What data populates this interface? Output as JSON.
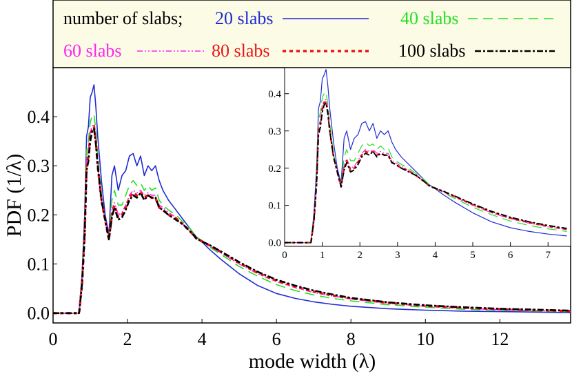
{
  "chart_data": [
    {
      "type": "line",
      "title": "",
      "xlabel": "mode width (λ)",
      "ylabel": "PDF (1/λ)",
      "xlim": [
        0,
        13.9
      ],
      "ylim": [
        -0.02,
        0.5
      ],
      "xticks": [
        0,
        2,
        4,
        6,
        8,
        10,
        12
      ],
      "xtick_labels": [
        "0",
        "2",
        "4",
        "6",
        "8",
        "10",
        "12"
      ],
      "yticks": [
        0.0,
        0.1,
        0.2,
        0.3,
        0.4
      ],
      "ytick_labels": [
        "0.0",
        "0.1",
        "0.2",
        "0.3",
        "0.4"
      ],
      "legend": {
        "title": "number of slabs;",
        "position": "top",
        "entries": [
          "20 slabs",
          "40 slabs",
          "60 slabs",
          "80 slabs",
          "100 slabs"
        ]
      },
      "x": [
        0,
        0.7,
        0.78,
        0.85,
        0.9,
        0.95,
        1.0,
        1.05,
        1.1,
        1.15,
        1.2,
        1.3,
        1.4,
        1.5,
        1.58,
        1.65,
        1.75,
        1.85,
        1.95,
        2.05,
        2.15,
        2.25,
        2.35,
        2.45,
        2.55,
        2.65,
        2.75,
        2.85,
        2.95,
        3.1,
        3.3,
        3.5,
        3.7,
        3.85,
        4.0,
        4.2,
        4.5,
        5.0,
        5.5,
        6.0,
        6.5,
        7.0,
        7.5,
        8.0,
        9.0,
        10.0,
        11.0,
        12.0,
        13.0,
        13.9
      ],
      "series": [
        {
          "name": "20 slabs",
          "color": "#1f2bd1",
          "dash": "solid",
          "values": [
            0,
            0,
            0.08,
            0.2,
            0.36,
            0.38,
            0.44,
            0.45,
            0.465,
            0.42,
            0.36,
            0.27,
            0.2,
            0.16,
            0.28,
            0.3,
            0.25,
            0.28,
            0.29,
            0.32,
            0.325,
            0.3,
            0.32,
            0.28,
            0.3,
            0.29,
            0.3,
            0.27,
            0.25,
            0.23,
            0.21,
            0.19,
            0.17,
            0.155,
            0.145,
            0.13,
            0.11,
            0.08,
            0.056,
            0.04,
            0.03,
            0.023,
            0.018,
            0.014,
            0.009,
            0.006,
            0.004,
            0.003,
            0.002,
            0.001
          ]
        },
        {
          "name": "40 slabs",
          "color": "#22e022",
          "dash": "long-dash",
          "values": [
            0,
            0,
            0.07,
            0.18,
            0.33,
            0.35,
            0.39,
            0.4,
            0.405,
            0.37,
            0.32,
            0.24,
            0.19,
            0.155,
            0.23,
            0.25,
            0.22,
            0.22,
            0.24,
            0.26,
            0.27,
            0.26,
            0.265,
            0.25,
            0.26,
            0.25,
            0.255,
            0.23,
            0.22,
            0.21,
            0.2,
            0.185,
            0.17,
            0.155,
            0.148,
            0.135,
            0.12,
            0.095,
            0.075,
            0.058,
            0.046,
            0.037,
            0.03,
            0.025,
            0.017,
            0.012,
            0.008,
            0.006,
            0.004,
            0.003
          ]
        },
        {
          "name": "60 slabs",
          "color": "#ff22ee",
          "dash": "dash-dot-dot",
          "values": [
            0,
            0,
            0.06,
            0.17,
            0.31,
            0.33,
            0.37,
            0.38,
            0.385,
            0.35,
            0.3,
            0.23,
            0.19,
            0.15,
            0.21,
            0.225,
            0.2,
            0.205,
            0.22,
            0.24,
            0.25,
            0.245,
            0.25,
            0.24,
            0.245,
            0.24,
            0.24,
            0.22,
            0.215,
            0.205,
            0.195,
            0.18,
            0.165,
            0.152,
            0.146,
            0.137,
            0.123,
            0.1,
            0.08,
            0.064,
            0.052,
            0.042,
            0.035,
            0.029,
            0.02,
            0.014,
            0.01,
            0.007,
            0.005,
            0.004
          ]
        },
        {
          "name": "80 slabs",
          "color": "#ee1111",
          "dash": "dotted",
          "values": [
            0,
            0,
            0.06,
            0.16,
            0.3,
            0.32,
            0.36,
            0.375,
            0.38,
            0.35,
            0.3,
            0.23,
            0.19,
            0.15,
            0.2,
            0.22,
            0.195,
            0.2,
            0.215,
            0.235,
            0.245,
            0.24,
            0.245,
            0.235,
            0.24,
            0.235,
            0.235,
            0.215,
            0.21,
            0.2,
            0.193,
            0.18,
            0.165,
            0.152,
            0.146,
            0.138,
            0.125,
            0.102,
            0.082,
            0.066,
            0.054,
            0.044,
            0.036,
            0.03,
            0.021,
            0.015,
            0.011,
            0.008,
            0.006,
            0.004
          ]
        },
        {
          "name": "100 slabs",
          "color": "#000000",
          "dash": "dash-dot",
          "values": [
            0,
            0,
            0.06,
            0.16,
            0.29,
            0.31,
            0.35,
            0.37,
            0.375,
            0.345,
            0.3,
            0.23,
            0.19,
            0.15,
            0.195,
            0.215,
            0.19,
            0.195,
            0.21,
            0.23,
            0.24,
            0.235,
            0.245,
            0.23,
            0.24,
            0.235,
            0.235,
            0.215,
            0.21,
            0.2,
            0.19,
            0.18,
            0.165,
            0.152,
            0.146,
            0.139,
            0.126,
            0.104,
            0.084,
            0.068,
            0.056,
            0.046,
            0.038,
            0.031,
            0.022,
            0.016,
            0.012,
            0.009,
            0.007,
            0.005
          ]
        }
      ]
    },
    {
      "type": "line",
      "title": "",
      "xlabel": "",
      "ylabel": "",
      "xlim": [
        0,
        7.6
      ],
      "ylim": [
        -0.01,
        0.47
      ],
      "xticks": [
        0,
        1,
        2,
        3,
        4,
        5,
        6,
        7
      ],
      "xtick_labels": [
        "0",
        "1",
        "2",
        "3",
        "4",
        "5",
        "6",
        "7"
      ],
      "yticks": [
        0.0,
        0.1,
        0.2,
        0.3,
        0.4
      ],
      "ytick_labels": [
        "0.0",
        "0.1",
        "0.2",
        "0.3",
        "0.4"
      ],
      "note": "inset: same series zoomed to x in [0, 7.6]"
    }
  ]
}
